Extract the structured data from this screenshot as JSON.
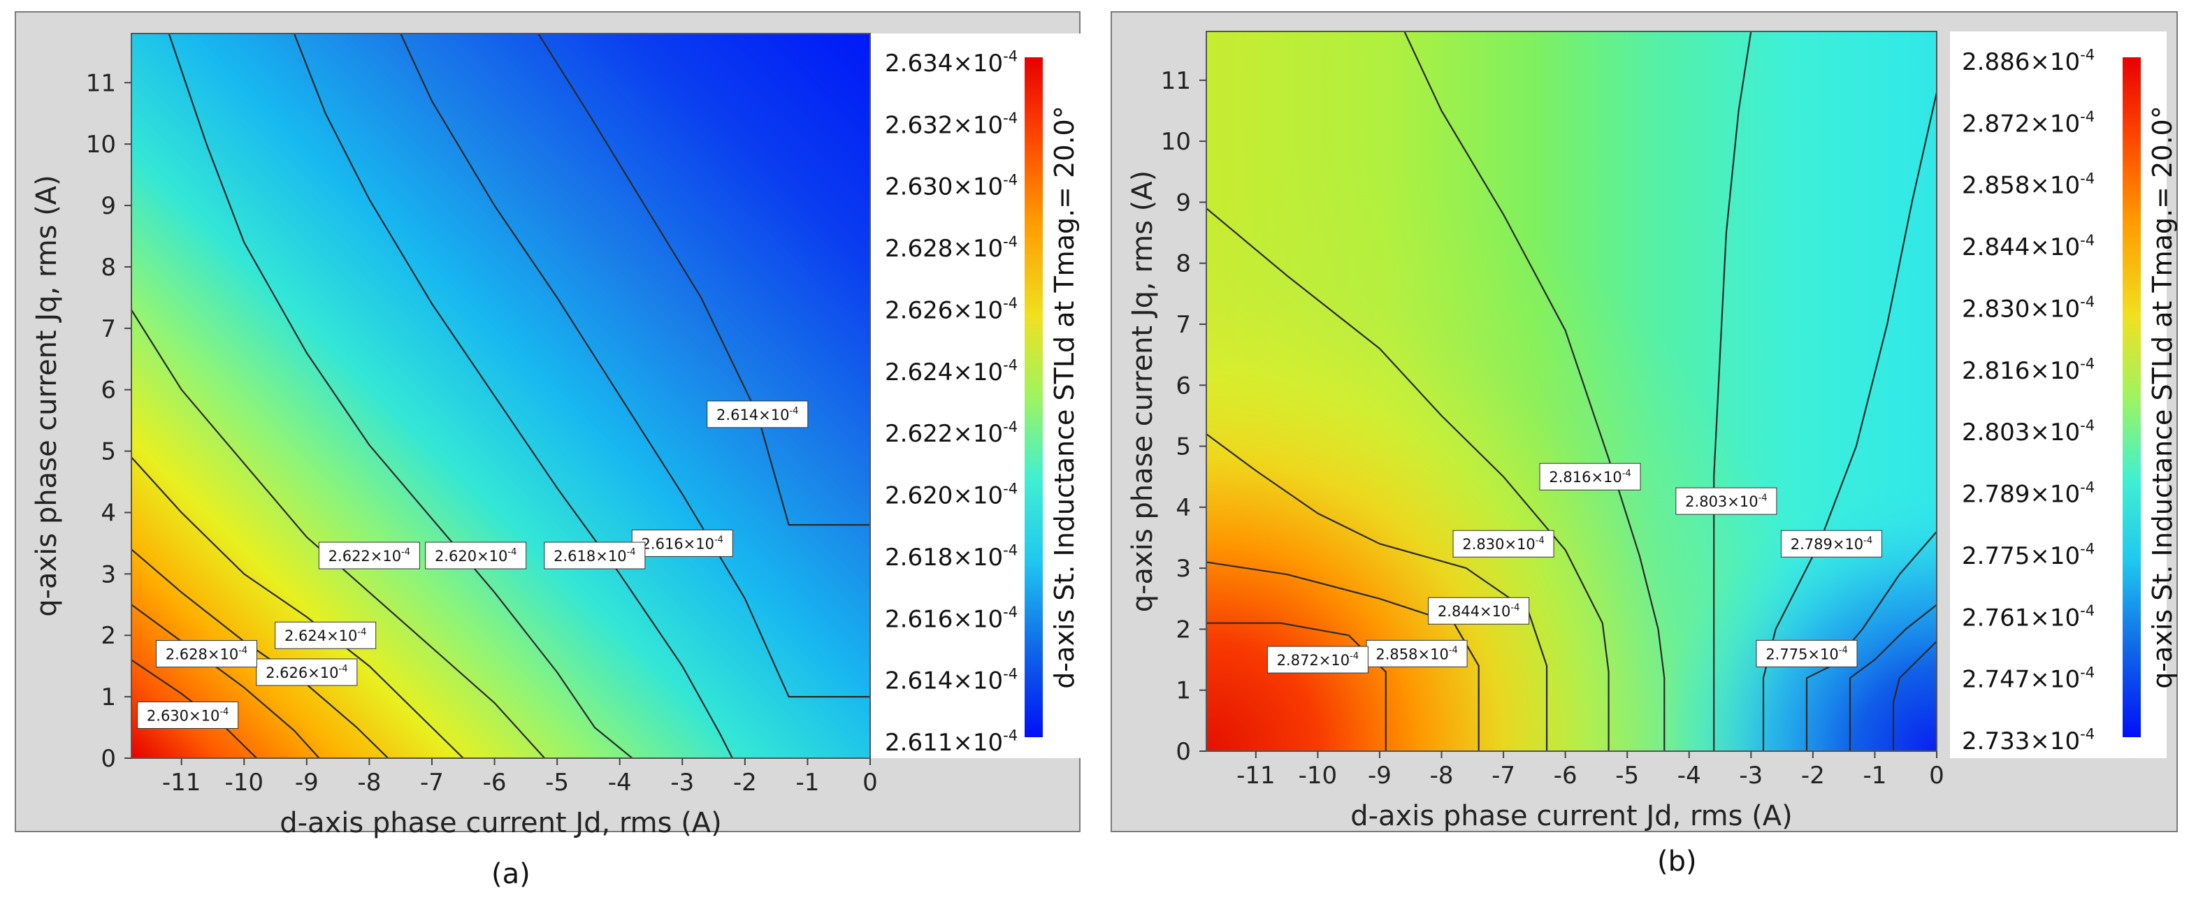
{
  "chart_data": [
    {
      "type": "heatmap",
      "panel_label": "(a)",
      "title": "",
      "xlabel": "d-axis phase current Jd, rms (A)",
      "ylabel": "q-axis phase current Jq, rms (A)",
      "xlim": [
        -11.8,
        0
      ],
      "ylim": [
        0,
        11.8
      ],
      "x_ticks": [
        -11,
        -10,
        -9,
        -8,
        -7,
        -6,
        -5,
        -4,
        -3,
        -2,
        -1,
        0
      ],
      "y_ticks": [
        0,
        1,
        2,
        3,
        4,
        5,
        6,
        7,
        8,
        9,
        10,
        11
      ],
      "colorbar_label": "d-axis St. Inductance STLd at Tmag.= 20.0°",
      "colorbar_range": [
        0.0002611,
        0.0002634
      ],
      "colorbar_ticks": [
        {
          "mantissa": "2.634",
          "value": 0.0002634
        },
        {
          "mantissa": "2.632",
          "value": 0.0002632
        },
        {
          "mantissa": "2.630",
          "value": 0.000263
        },
        {
          "mantissa": "2.628",
          "value": 0.0002628
        },
        {
          "mantissa": "2.626",
          "value": 0.0002626
        },
        {
          "mantissa": "2.624",
          "value": 0.0002624
        },
        {
          "mantissa": "2.622",
          "value": 0.0002622
        },
        {
          "mantissa": "2.620",
          "value": 0.000262
        },
        {
          "mantissa": "2.618",
          "value": 0.0002618
        },
        {
          "mantissa": "2.616",
          "value": 0.0002616
        },
        {
          "mantissa": "2.614",
          "value": 0.0002614
        },
        {
          "mantissa": "2.611",
          "value": 0.0002611
        }
      ],
      "contours": [
        {
          "mantissa": "2.630",
          "points": [
            [
              -11.8,
              1.6
            ],
            [
              -11,
              1.05
            ],
            [
              -10.3,
              0.5
            ],
            [
              -9.8,
              0
            ]
          ]
        },
        {
          "mantissa": "2.628",
          "points": [
            [
              -11.8,
              2.5
            ],
            [
              -11,
              1.9
            ],
            [
              -10,
              1.15
            ],
            [
              -9.2,
              0.45
            ],
            [
              -8.8,
              0
            ]
          ]
        },
        {
          "mantissa": "2.626",
          "points": [
            [
              -11.8,
              3.4
            ],
            [
              -11,
              2.7
            ],
            [
              -10,
              1.9
            ],
            [
              -9,
              1.2
            ],
            [
              -8.2,
              0.5
            ],
            [
              -7.7,
              0
            ]
          ]
        },
        {
          "mantissa": "2.624",
          "points": [
            [
              -11.8,
              4.9
            ],
            [
              -11,
              4.0
            ],
            [
              -10,
              3.0
            ],
            [
              -9,
              2.3
            ],
            [
              -8,
              1.5
            ],
            [
              -7.1,
              0.6
            ],
            [
              -6.5,
              0
            ]
          ]
        },
        {
          "mantissa": "2.622",
          "points": [
            [
              -11.8,
              7.3
            ],
            [
              -11,
              6.0
            ],
            [
              -10,
              4.8
            ],
            [
              -9,
              3.6
            ],
            [
              -8,
              2.7
            ],
            [
              -7,
              1.8
            ],
            [
              -6,
              0.9
            ],
            [
              -5.2,
              0
            ]
          ]
        },
        {
          "mantissa": "2.620",
          "points": [
            [
              -11.2,
              11.8
            ],
            [
              -10.6,
              10
            ],
            [
              -10,
              8.4
            ],
            [
              -9,
              6.6
            ],
            [
              -8,
              5.1
            ],
            [
              -7,
              3.9
            ],
            [
              -6,
              2.7
            ],
            [
              -5,
              1.4
            ],
            [
              -4.4,
              0.5
            ],
            [
              -3.8,
              0
            ]
          ]
        },
        {
          "mantissa": "2.618",
          "points": [
            [
              -9.2,
              11.8
            ],
            [
              -8.7,
              10.5
            ],
            [
              -8,
              9.1
            ],
            [
              -7,
              7.4
            ],
            [
              -6,
              5.9
            ],
            [
              -5,
              4.4
            ],
            [
              -4,
              3.0
            ],
            [
              -3,
              1.5
            ],
            [
              -2.4,
              0.4
            ],
            [
              -2.2,
              0
            ]
          ]
        },
        {
          "mantissa": "2.616",
          "points": [
            [
              -7.5,
              11.8
            ],
            [
              -7,
              10.7
            ],
            [
              -6,
              9.0
            ],
            [
              -5,
              7.5
            ],
            [
              -4,
              5.9
            ],
            [
              -3,
              4.3
            ],
            [
              -2,
              2.6
            ],
            [
              -1.3,
              1.0
            ],
            [
              0,
              1.0
            ]
          ]
        },
        {
          "mantissa": "2.614",
          "points": [
            [
              -5.3,
              11.8
            ],
            [
              -4.5,
              10.5
            ],
            [
              -3.6,
              9.0
            ],
            [
              -2.7,
              7.5
            ],
            [
              -1.8,
              5.6
            ],
            [
              -1.3,
              3.8
            ],
            [
              0,
              3.8
            ]
          ]
        }
      ],
      "contour_labels": [
        {
          "mantissa": "2.614",
          "x": -1.8,
          "y": 5.6
        },
        {
          "mantissa": "2.616",
          "x": -3.0,
          "y": 3.5
        },
        {
          "mantissa": "2.618",
          "x": -4.4,
          "y": 3.3
        },
        {
          "mantissa": "2.620",
          "x": -6.3,
          "y": 3.3
        },
        {
          "mantissa": "2.622",
          "x": -8.0,
          "y": 3.3
        },
        {
          "mantissa": "2.624",
          "x": -8.7,
          "y": 2.0
        },
        {
          "mantissa": "2.626",
          "x": -9.0,
          "y": 1.4
        },
        {
          "mantissa": "2.628",
          "x": -10.6,
          "y": 1.7
        },
        {
          "mantissa": "2.630",
          "x": -10.9,
          "y": 0.7
        }
      ]
    },
    {
      "type": "heatmap",
      "panel_label": "(b)",
      "title": "",
      "xlabel": "d-axis phase current Jd, rms (A)",
      "ylabel": "q-axis phase current Jq, rms (A)",
      "xlim": [
        -11.8,
        0
      ],
      "ylim": [
        0,
        11.8
      ],
      "x_ticks": [
        -11,
        -10,
        -9,
        -8,
        -7,
        -6,
        -5,
        -4,
        -3,
        -2,
        -1,
        0
      ],
      "y_ticks": [
        0,
        1,
        2,
        3,
        4,
        5,
        6,
        7,
        8,
        9,
        10,
        11
      ],
      "colorbar_label": "q-axis St. Inductance STLd at Tmag.= 20.0°",
      "colorbar_range": [
        0.0002733,
        0.0002886
      ],
      "colorbar_ticks": [
        {
          "mantissa": "2.886",
          "value": 0.0002886
        },
        {
          "mantissa": "2.872",
          "value": 0.0002872
        },
        {
          "mantissa": "2.858",
          "value": 0.0002858
        },
        {
          "mantissa": "2.844",
          "value": 0.0002844
        },
        {
          "mantissa": "2.830",
          "value": 0.000283
        },
        {
          "mantissa": "2.816",
          "value": 0.0002816
        },
        {
          "mantissa": "2.803",
          "value": 0.0002803
        },
        {
          "mantissa": "2.789",
          "value": 0.0002789
        },
        {
          "mantissa": "2.775",
          "value": 0.0002775
        },
        {
          "mantissa": "2.761",
          "value": 0.0002761
        },
        {
          "mantissa": "2.747",
          "value": 0.0002747
        },
        {
          "mantissa": "2.733",
          "value": 0.0002733
        }
      ],
      "contours": [
        {
          "mantissa": "2.872",
          "points": [
            [
              -11.8,
              2.1
            ],
            [
              -10.6,
              2.1
            ],
            [
              -9.5,
              1.9
            ],
            [
              -8.9,
              1.3
            ],
            [
              -8.9,
              0
            ]
          ]
        },
        {
          "mantissa": "2.858",
          "points": [
            [
              -11.8,
              3.1
            ],
            [
              -10.5,
              2.9
            ],
            [
              -9,
              2.5
            ],
            [
              -7.8,
              2.1
            ],
            [
              -7.4,
              1.4
            ],
            [
              -7.4,
              0
            ]
          ]
        },
        {
          "mantissa": "2.844",
          "points": [
            [
              -11.8,
              5.2
            ],
            [
              -11,
              4.6
            ],
            [
              -10,
              3.9
            ],
            [
              -9,
              3.4
            ],
            [
              -7.6,
              3.0
            ],
            [
              -6.6,
              2.3
            ],
            [
              -6.3,
              1.4
            ],
            [
              -6.3,
              0
            ]
          ]
        },
        {
          "mantissa": "2.830",
          "points": [
            [
              -11.8,
              8.9
            ],
            [
              -10.5,
              7.8
            ],
            [
              -9,
              6.6
            ],
            [
              -8,
              5.5
            ],
            [
              -7,
              4.5
            ],
            [
              -6,
              3.3
            ],
            [
              -5.4,
              2.1
            ],
            [
              -5.3,
              1.3
            ],
            [
              -5.3,
              0
            ]
          ]
        },
        {
          "mantissa": "2.816",
          "points": [
            [
              -8.6,
              11.8
            ],
            [
              -8,
              10.5
            ],
            [
              -7,
              8.8
            ],
            [
              -6,
              6.9
            ],
            [
              -5.3,
              4.8
            ],
            [
              -4.8,
              3.2
            ],
            [
              -4.5,
              2.0
            ],
            [
              -4.4,
              1.2
            ],
            [
              -4.4,
              0
            ]
          ]
        },
        {
          "mantissa": "2.803",
          "points": [
            [
              -3.0,
              11.8
            ],
            [
              -3.2,
              10.5
            ],
            [
              -3.4,
              8.5
            ],
            [
              -3.5,
              6.5
            ],
            [
              -3.6,
              4.5
            ],
            [
              -3.6,
              2.0
            ],
            [
              -3.6,
              0
            ]
          ]
        },
        {
          "mantissa": "2.789",
          "points": [
            [
              0,
              10.8
            ],
            [
              -0.4,
              9
            ],
            [
              -0.8,
              7
            ],
            [
              -1.3,
              5
            ],
            [
              -1.9,
              3.4
            ],
            [
              -2.6,
              2.0
            ],
            [
              -2.8,
              1.2
            ],
            [
              -2.8,
              0
            ]
          ]
        },
        {
          "mantissa": "2.775",
          "points": [
            [
              0,
              3.6
            ],
            [
              -0.6,
              2.9
            ],
            [
              -1.2,
              2.0
            ],
            [
              -1.7,
              1.4
            ],
            [
              -2.1,
              1.2
            ],
            [
              -2.1,
              0
            ]
          ]
        },
        {
          "mantissa": "2.761",
          "points": [
            [
              0,
              2.4
            ],
            [
              -0.5,
              2.0
            ],
            [
              -1.0,
              1.5
            ],
            [
              -1.4,
              1.2
            ],
            [
              -1.4,
              0
            ]
          ]
        },
        {
          "mantissa": "2.747",
          "points": [
            [
              0,
              1.8
            ],
            [
              -0.3,
              1.5
            ],
            [
              -0.6,
              1.2
            ],
            [
              -0.7,
              0.8
            ],
            [
              -0.7,
              0
            ]
          ]
        }
      ],
      "contour_labels": [
        {
          "mantissa": "2.816",
          "x": -5.6,
          "y": 4.5
        },
        {
          "mantissa": "2.803",
          "x": -3.4,
          "y": 4.1
        },
        {
          "mantissa": "2.830",
          "x": -7.0,
          "y": 3.4
        },
        {
          "mantissa": "2.789",
          "x": -1.7,
          "y": 3.4
        },
        {
          "mantissa": "2.844",
          "x": -7.4,
          "y": 2.3
        },
        {
          "mantissa": "2.858",
          "x": -8.4,
          "y": 1.6
        },
        {
          "mantissa": "2.872",
          "x": -10.0,
          "y": 1.5
        },
        {
          "mantissa": "2.775",
          "x": -2.1,
          "y": 1.6
        }
      ]
    }
  ],
  "exponent_suffix": "×10",
  "exponent_power": "-4",
  "captions": [
    "(a)",
    "(b)"
  ]
}
